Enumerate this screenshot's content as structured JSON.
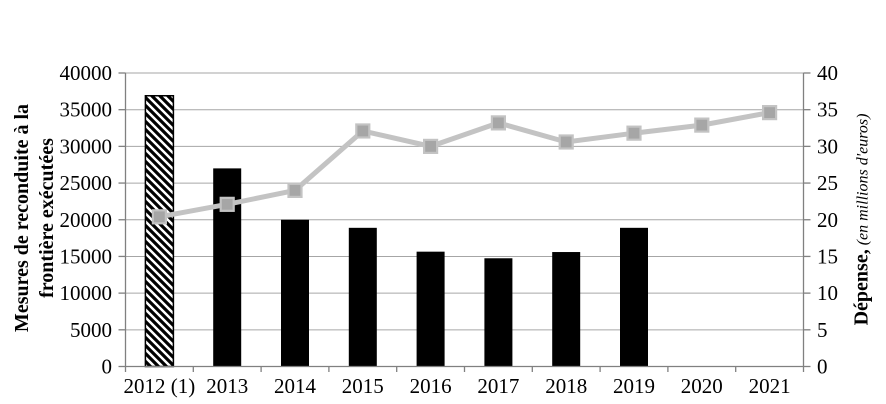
{
  "chart_data": {
    "type": "bar",
    "subtype": "bar-and-line-dual-axis",
    "categories": [
      "2012 (1)",
      "2013",
      "2014",
      "2015",
      "2016",
      "2017",
      "2018",
      "2019",
      "2020",
      "2021"
    ],
    "series": [
      {
        "name": "Mesures de reconduite à la frontière exécutées",
        "type": "bar",
        "axis": "left",
        "values": [
          36900,
          27000,
          20000,
          18900,
          15650,
          14750,
          15600,
          18900,
          null,
          null
        ],
        "hatched_indices": [
          0
        ]
      },
      {
        "name": "Dépense (en millions d'euros)",
        "type": "line",
        "axis": "right",
        "marker": "square",
        "values": [
          20.4,
          22.1,
          24,
          32.1,
          30,
          33.2,
          30.6,
          31.8,
          32.9,
          34.6
        ]
      }
    ],
    "left_axis": {
      "label": "Mesures de reconduite à la frontière exécutées",
      "min": 0,
      "max": 40000,
      "step": 5000,
      "tick_labels": [
        "0",
        "5000",
        "10000",
        "15000",
        "20000",
        "25000",
        "30000",
        "35000",
        "40000"
      ]
    },
    "right_axis": {
      "label_bold": "Dépense,",
      "label_italic": "(en millions d'euros)",
      "min": 0,
      "max": 40,
      "step": 5,
      "tick_labels": [
        "0",
        "5",
        "10",
        "15",
        "20",
        "25",
        "30",
        "35",
        "40"
      ]
    },
    "grid": true,
    "legend": "none",
    "colors": {
      "bar": "#000000",
      "hatch_bg": "#ffffff",
      "line": "#c3c3c3",
      "marker_fill": "#a6a6a6",
      "grid": "#a6a6a6",
      "axis": "#808080",
      "text": "#000000",
      "background": "#ffffff"
    }
  }
}
